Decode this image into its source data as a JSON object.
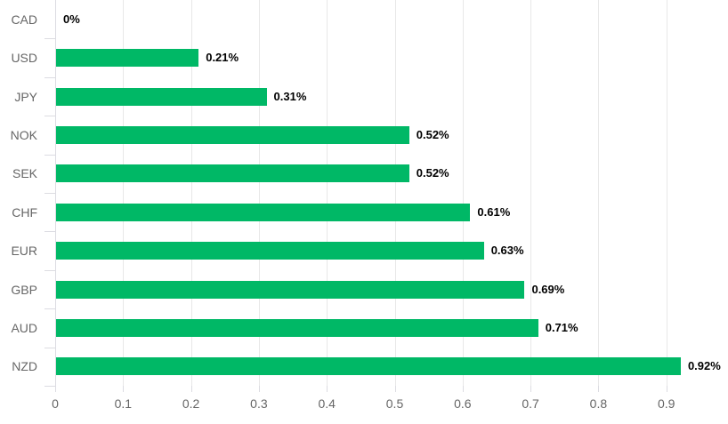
{
  "chart_data": {
    "type": "bar",
    "orientation": "horizontal",
    "title": "",
    "xlabel": "",
    "ylabel": "",
    "categories": [
      "CAD",
      "USD",
      "JPY",
      "NOK",
      "SEK",
      "CHF",
      "EUR",
      "GBP",
      "AUD",
      "NZD"
    ],
    "values": [
      0,
      0.21,
      0.31,
      0.52,
      0.52,
      0.61,
      0.63,
      0.69,
      0.71,
      0.92
    ],
    "value_labels": [
      "0%",
      "0.21%",
      "0.31%",
      "0.52%",
      "0.52%",
      "0.61%",
      "0.63%",
      "0.69%",
      "0.71%",
      "0.92%"
    ],
    "x_tick_labels": [
      "0",
      "0.1",
      "0.2",
      "0.3",
      "0.4",
      "0.5",
      "0.6",
      "0.7",
      "0.8",
      "0.9"
    ],
    "x_tick_values": [
      0,
      0.1,
      0.2,
      0.3,
      0.4,
      0.5,
      0.6,
      0.7,
      0.8,
      0.9
    ],
    "xlim": [
      0,
      0.99
    ],
    "grid": "vertical",
    "legend": "none",
    "colors": {
      "bar": "#00b866",
      "grid": "#e8e8e8",
      "axis": "#dcdce2",
      "category_label": "#666666",
      "tick_label": "#666666",
      "value_label": "#000000",
      "background": "#ffffff"
    }
  }
}
